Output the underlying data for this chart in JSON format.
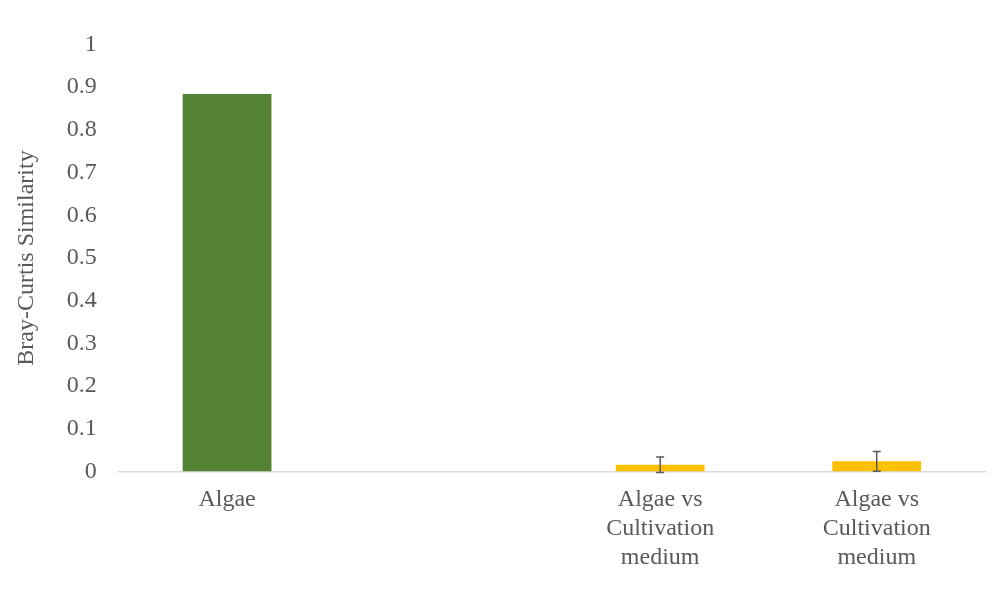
{
  "chart_data": {
    "type": "bar",
    "ylabel": "Bray-Curtis Similarity",
    "categories": [
      "Algae",
      null,
      "Algae vs Cultivation medium",
      "Algae vs Cultivation medium"
    ],
    "values": [
      0.884,
      null,
      0.016,
      0.024
    ],
    "colors": [
      "#548235",
      "#548235",
      "#ffc000",
      "#ffc000"
    ],
    "errors": [
      null,
      null,
      0.018,
      0.023
    ],
    "ylim": [
      0,
      1
    ],
    "yticks": [
      0,
      0.1,
      0.2,
      0.3,
      0.4,
      0.5,
      0.6,
      0.7,
      0.8,
      0.9,
      1
    ],
    "grid": false,
    "legend": false
  }
}
